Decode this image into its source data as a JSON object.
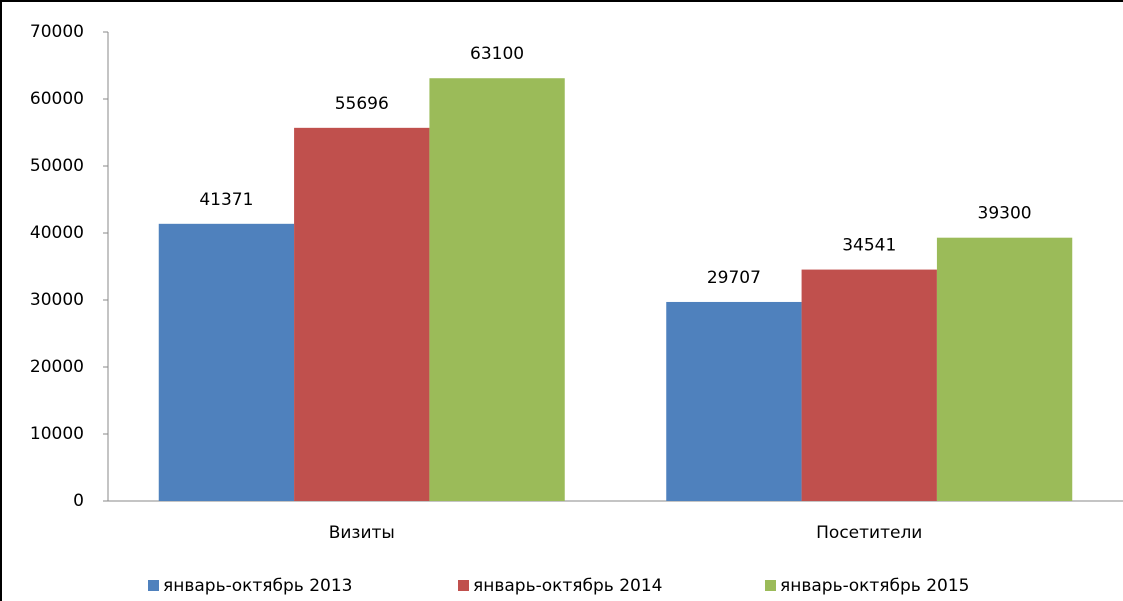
{
  "chart_data": {
    "type": "bar",
    "categories": [
      "Визиты",
      "Посетители"
    ],
    "series": [
      {
        "name": "январь-октябрь 2013",
        "color": "#4f81bd",
        "values": [
          41371,
          29707
        ]
      },
      {
        "name": "январь-октябрь 2014",
        "color": "#c0504d",
        "values": [
          55696,
          34541
        ]
      },
      {
        "name": "январь-октябрь 2015",
        "color": "#9bbb59",
        "values": [
          63100,
          39300
        ]
      }
    ],
    "ylim": [
      0,
      70000
    ],
    "yticks": [
      0,
      10000,
      20000,
      30000,
      40000,
      50000,
      60000,
      70000
    ],
    "grid": false,
    "legend": "bottom"
  }
}
